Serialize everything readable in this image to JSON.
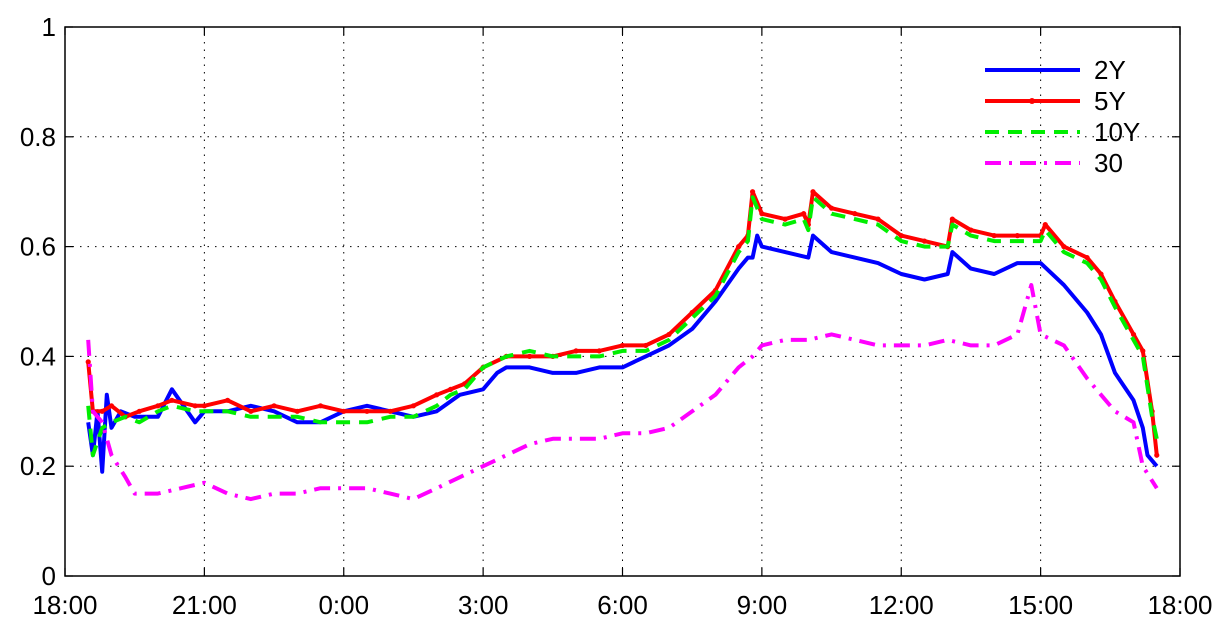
{
  "chart_data": {
    "type": "line",
    "x_unit": "hours from 18:00",
    "xlim": [
      0,
      24
    ],
    "ylim": [
      0,
      1
    ],
    "x_ticks": [
      {
        "value": 0,
        "label": "18:00"
      },
      {
        "value": 3,
        "label": "21:00"
      },
      {
        "value": 6,
        "label": "0:00"
      },
      {
        "value": 9,
        "label": "3:00"
      },
      {
        "value": 12,
        "label": "6:00"
      },
      {
        "value": 15,
        "label": "9:00"
      },
      {
        "value": 18,
        "label": "12:00"
      },
      {
        "value": 21,
        "label": "15:00"
      },
      {
        "value": 24,
        "label": "18:00"
      }
    ],
    "y_ticks": [
      {
        "value": 0,
        "label": "0"
      },
      {
        "value": 0.2,
        "label": "0.2"
      },
      {
        "value": 0.4,
        "label": "0.4"
      },
      {
        "value": 0.6,
        "label": "0.6"
      },
      {
        "value": 0.8,
        "label": "0.8"
      },
      {
        "value": 1,
        "label": "1"
      }
    ],
    "grid": true,
    "legend_position": "top-right",
    "series": [
      {
        "name": "2Y",
        "color": "#0000ff",
        "style": "solid",
        "x": [
          0.5,
          0.6,
          0.7,
          0.8,
          0.9,
          1.0,
          1.2,
          1.5,
          2.0,
          2.3,
          2.8,
          3.0,
          3.5,
          4.0,
          4.5,
          5.0,
          5.5,
          6.0,
          6.5,
          7.0,
          7.5,
          8.0,
          8.5,
          9.0,
          9.3,
          9.5,
          10.0,
          10.5,
          11.0,
          11.5,
          12.0,
          12.5,
          13.0,
          13.5,
          14.0,
          14.5,
          14.7,
          14.8,
          14.9,
          15.0,
          15.5,
          16.0,
          16.1,
          16.5,
          17.0,
          17.5,
          18.0,
          18.5,
          19.0,
          19.1,
          19.5,
          20.0,
          20.5,
          21.0,
          21.5,
          22.0,
          22.3,
          22.6,
          23.0,
          23.2,
          23.3,
          23.5
        ],
        "values": [
          0.28,
          0.22,
          0.3,
          0.19,
          0.33,
          0.27,
          0.3,
          0.29,
          0.29,
          0.34,
          0.28,
          0.3,
          0.3,
          0.31,
          0.3,
          0.28,
          0.28,
          0.3,
          0.31,
          0.3,
          0.29,
          0.3,
          0.33,
          0.34,
          0.37,
          0.38,
          0.38,
          0.37,
          0.37,
          0.38,
          0.38,
          0.4,
          0.42,
          0.45,
          0.5,
          0.56,
          0.58,
          0.58,
          0.62,
          0.6,
          0.59,
          0.58,
          0.62,
          0.59,
          0.58,
          0.57,
          0.55,
          0.54,
          0.55,
          0.59,
          0.56,
          0.55,
          0.57,
          0.57,
          0.53,
          0.48,
          0.44,
          0.37,
          0.32,
          0.27,
          0.22,
          0.2
        ]
      },
      {
        "name": "5Y",
        "color": "#ff0000",
        "style": "solid-dots",
        "x": [
          0.5,
          0.6,
          0.8,
          1.0,
          1.3,
          1.6,
          2.0,
          2.3,
          2.8,
          3.0,
          3.5,
          4.0,
          4.5,
          5.0,
          5.5,
          6.0,
          6.5,
          7.0,
          7.5,
          8.0,
          8.3,
          8.6,
          9.0,
          9.5,
          10.0,
          10.5,
          11.0,
          11.5,
          12.0,
          12.5,
          13.0,
          13.5,
          14.0,
          14.5,
          14.7,
          14.8,
          15.0,
          15.5,
          15.9,
          16.0,
          16.1,
          16.5,
          17.0,
          17.5,
          18.0,
          18.5,
          19.0,
          19.1,
          19.5,
          20.0,
          20.5,
          21.0,
          21.1,
          21.5,
          22.0,
          22.3,
          22.6,
          23.0,
          23.2,
          23.4,
          23.5
        ],
        "values": [
          0.39,
          0.3,
          0.3,
          0.31,
          0.29,
          0.3,
          0.31,
          0.32,
          0.31,
          0.31,
          0.32,
          0.3,
          0.31,
          0.3,
          0.31,
          0.3,
          0.3,
          0.3,
          0.31,
          0.33,
          0.34,
          0.35,
          0.38,
          0.4,
          0.4,
          0.4,
          0.41,
          0.41,
          0.42,
          0.42,
          0.44,
          0.48,
          0.52,
          0.6,
          0.62,
          0.7,
          0.66,
          0.65,
          0.66,
          0.64,
          0.7,
          0.67,
          0.66,
          0.65,
          0.62,
          0.61,
          0.6,
          0.65,
          0.63,
          0.62,
          0.62,
          0.62,
          0.64,
          0.6,
          0.58,
          0.55,
          0.5,
          0.44,
          0.41,
          0.3,
          0.22
        ]
      },
      {
        "name": "10Y",
        "color": "#00ee00",
        "style": "dashed",
        "x": [
          0.5,
          0.6,
          0.8,
          1.0,
          1.3,
          1.6,
          2.0,
          2.3,
          2.8,
          3.0,
          3.5,
          4.0,
          4.5,
          5.0,
          5.5,
          6.0,
          6.5,
          7.0,
          7.5,
          8.0,
          8.3,
          8.6,
          9.0,
          9.5,
          10.0,
          10.5,
          11.0,
          11.5,
          12.0,
          12.5,
          13.0,
          13.5,
          14.0,
          14.5,
          14.7,
          14.8,
          15.0,
          15.5,
          15.9,
          16.0,
          16.1,
          16.5,
          17.0,
          17.5,
          18.0,
          18.5,
          19.0,
          19.1,
          19.5,
          20.0,
          20.5,
          21.0,
          21.1,
          21.5,
          22.0,
          22.3,
          22.6,
          23.0,
          23.2,
          23.4,
          23.5
        ],
        "values": [
          0.31,
          0.22,
          0.27,
          0.28,
          0.29,
          0.28,
          0.3,
          0.31,
          0.3,
          0.3,
          0.3,
          0.29,
          0.29,
          0.29,
          0.28,
          0.28,
          0.28,
          0.29,
          0.29,
          0.31,
          0.33,
          0.34,
          0.38,
          0.4,
          0.41,
          0.4,
          0.4,
          0.4,
          0.41,
          0.41,
          0.43,
          0.47,
          0.51,
          0.59,
          0.61,
          0.69,
          0.65,
          0.64,
          0.65,
          0.63,
          0.69,
          0.66,
          0.65,
          0.64,
          0.61,
          0.6,
          0.6,
          0.64,
          0.62,
          0.61,
          0.61,
          0.61,
          0.63,
          0.59,
          0.57,
          0.54,
          0.49,
          0.43,
          0.4,
          0.29,
          0.25
        ]
      },
      {
        "name": "30",
        "color": "#ff00ff",
        "style": "dashdot",
        "x": [
          0.5,
          0.6,
          0.8,
          1.0,
          1.3,
          1.5,
          2.0,
          2.5,
          3.0,
          3.5,
          4.0,
          4.5,
          5.0,
          5.5,
          6.0,
          6.5,
          7.0,
          7.5,
          8.0,
          8.5,
          9.0,
          9.5,
          10.0,
          10.5,
          11.0,
          11.5,
          12.0,
          12.5,
          13.0,
          13.5,
          14.0,
          14.5,
          14.8,
          15.0,
          15.5,
          16.0,
          16.5,
          17.0,
          17.5,
          18.0,
          18.5,
          19.0,
          19.5,
          20.0,
          20.5,
          20.8,
          21.0,
          21.5,
          22.0,
          22.3,
          22.6,
          23.0,
          23.2,
          23.5
        ],
        "values": [
          0.43,
          0.3,
          0.28,
          0.22,
          0.18,
          0.15,
          0.15,
          0.16,
          0.17,
          0.15,
          0.14,
          0.15,
          0.15,
          0.16,
          0.16,
          0.16,
          0.15,
          0.14,
          0.16,
          0.18,
          0.2,
          0.22,
          0.24,
          0.25,
          0.25,
          0.25,
          0.26,
          0.26,
          0.27,
          0.3,
          0.33,
          0.38,
          0.4,
          0.42,
          0.43,
          0.43,
          0.44,
          0.43,
          0.42,
          0.42,
          0.42,
          0.43,
          0.42,
          0.42,
          0.44,
          0.53,
          0.44,
          0.42,
          0.36,
          0.33,
          0.3,
          0.28,
          0.2,
          0.16
        ]
      }
    ]
  }
}
